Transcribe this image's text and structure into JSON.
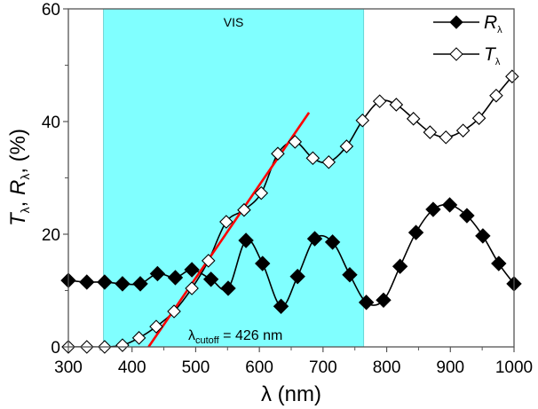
{
  "chart_data": {
    "type": "line",
    "title": "",
    "xlabel": "λ (nm)",
    "ylabel_parts": [
      "T",
      "λ",
      ", ",
      "R",
      "λ",
      ", (%)"
    ],
    "ylabel": "Tλ, Rλ, (%)",
    "xlim": [
      300,
      1000
    ],
    "ylim": [
      0,
      60
    ],
    "x_ticks": [
      300,
      400,
      500,
      600,
      700,
      800,
      900,
      1000
    ],
    "y_ticks": [
      0,
      20,
      40,
      60
    ],
    "grid": false,
    "legend_position": "top-right",
    "shaded_region": {
      "label": "VIS",
      "x_range": [
        355,
        764
      ],
      "color": "#80FFFF"
    },
    "fit_line": {
      "color": "#FF0000",
      "x": [
        426,
        678
      ],
      "y": [
        0,
        41.6
      ]
    },
    "annotation": {
      "text_main": "λ",
      "text_sub": "cutoff",
      "text_tail": " = 426 nm"
    },
    "series": [
      {
        "name": "Rλ",
        "label_main": "R",
        "label_sub": "λ",
        "marker": "filled-diamond",
        "x": [
          300,
          329,
          357,
          385,
          413,
          440,
          468,
          494,
          524,
          551,
          579,
          605,
          634,
          660,
          687,
          715,
          742,
          768,
          795,
          821,
          846,
          873,
          899,
          926,
          951,
          976,
          1000
        ],
        "y": [
          11.8,
          11.5,
          11.5,
          11.2,
          11.2,
          13.0,
          12.3,
          13.7,
          12.0,
          10.4,
          18.9,
          14.8,
          7.2,
          12.5,
          19.2,
          18.6,
          12.8,
          7.9,
          8.3,
          14.3,
          20.3,
          24.4,
          25.2,
          23.3,
          19.7,
          14.8,
          11.2
        ]
      },
      {
        "name": "Tλ",
        "label_main": "T",
        "label_sub": "λ",
        "marker": "open-diamond",
        "x": [
          300,
          329,
          357,
          385,
          411,
          438,
          466,
          494,
          520,
          548,
          576,
          603,
          629,
          656,
          684,
          709,
          737,
          762,
          789,
          815,
          842,
          868,
          893,
          920,
          945,
          972,
          997
        ],
        "y": [
          0.0,
          0.0,
          0.0,
          0.3,
          1.6,
          3.6,
          6.3,
          10.4,
          15.3,
          22.2,
          24.3,
          27.3,
          34.3,
          36.4,
          33.5,
          32.8,
          35.6,
          40.2,
          43.6,
          43.0,
          40.5,
          38.1,
          37.2,
          38.4,
          40.6,
          44.6,
          48.0
        ]
      }
    ]
  }
}
